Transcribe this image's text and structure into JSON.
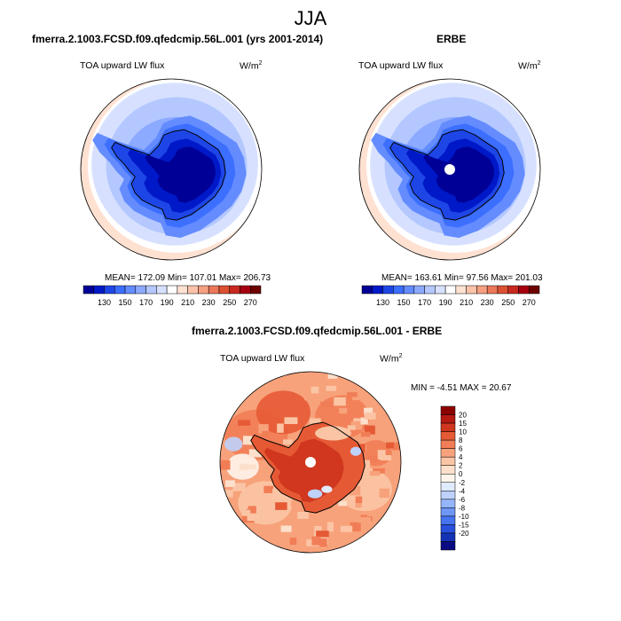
{
  "figure": {
    "season": "JJA"
  },
  "palette_abs": [
    "#000096",
    "#0019c8",
    "#1e46e6",
    "#3c6eff",
    "#648cff",
    "#8caaff",
    "#b4c8ff",
    "#d7e1ff",
    "#ffffff",
    "#ffe1d2",
    "#fac3aa",
    "#f5a082",
    "#eb785a",
    "#dc5032",
    "#c8281e",
    "#a5000f",
    "#6e0000"
  ],
  "palette_diff": [
    "#0a0a82",
    "#1432b4",
    "#2850dc",
    "#4673f0",
    "#6e96f5",
    "#96b4fa",
    "#bed2fc",
    "#e1ebfe",
    "#fff5ec",
    "#fde0cc",
    "#fbc5a5",
    "#f7a27b",
    "#f17d56",
    "#e55a35",
    "#d0371e",
    "#b41a10",
    "#8c0000"
  ],
  "chart_data": [
    {
      "type": "heatmap",
      "projection": "south-polar-stereographic",
      "title": "fmerra.2.1003.FCSD.f09.qfedcmip.56L.001 (yrs 2001-2014)",
      "variable": "TOA upward LW flux",
      "units_base": "W/m",
      "units_sup": "2",
      "stats": {
        "mean": 172.09,
        "min": 107.01,
        "max": 206.73
      },
      "stats_text": "MEAN= 172.09  Min= 107.01  Max= 206.73",
      "colorbar_ticks": [
        "130",
        "150",
        "170",
        "190",
        "210",
        "230",
        "250",
        "270"
      ],
      "colorbar_levels": [
        120,
        130,
        140,
        150,
        160,
        170,
        180,
        190,
        200,
        210,
        220,
        230,
        240,
        250,
        260,
        270
      ]
    },
    {
      "type": "heatmap",
      "projection": "south-polar-stereographic",
      "title": "ERBE",
      "variable": "TOA upward LW flux",
      "units_base": "W/m",
      "units_sup": "2",
      "stats": {
        "mean": 163.61,
        "min": 97.56,
        "max": 201.03
      },
      "stats_text": "MEAN= 163.61  Min= 97.56  Max= 201.03",
      "colorbar_ticks": [
        "130",
        "150",
        "170",
        "190",
        "210",
        "230",
        "250",
        "270"
      ],
      "colorbar_levels": [
        120,
        130,
        140,
        150,
        160,
        170,
        180,
        190,
        200,
        210,
        220,
        230,
        240,
        250,
        260,
        270
      ]
    },
    {
      "type": "heatmap",
      "projection": "south-polar-stereographic",
      "title": "fmerra.2.1003.FCSD.f09.qfedcmip.56L.001 - ERBE",
      "variable": "TOA upward LW flux",
      "units_base": "W/m",
      "units_sup": "2",
      "stats": {
        "min": -4.51,
        "max": 20.67
      },
      "stats_text": "MIN =  -4.51 MAX =  20.67",
      "colorbar_ticks": [
        "20",
        "15",
        "10",
        "8",
        "6",
        "4",
        "2",
        "0",
        "-2",
        "-4",
        "-6",
        "-8",
        "-10",
        "-15",
        "-20"
      ],
      "colorbar_levels": [
        -20,
        -15,
        -10,
        -8,
        -6,
        -4,
        -2,
        0,
        2,
        4,
        6,
        8,
        10,
        15,
        20
      ]
    }
  ]
}
